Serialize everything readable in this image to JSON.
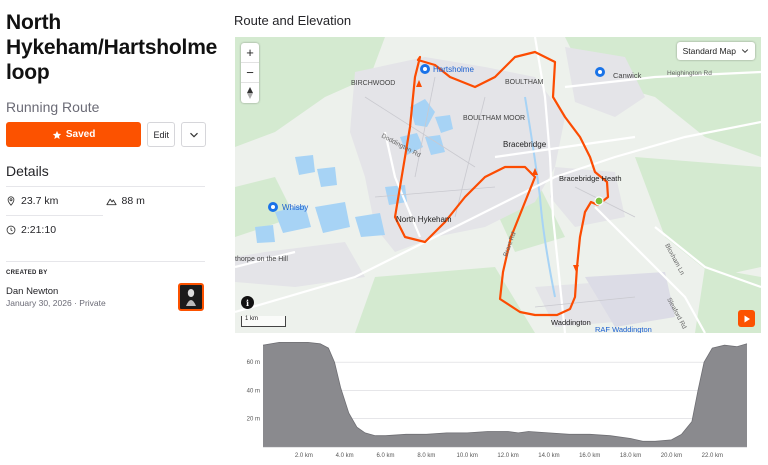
{
  "route": {
    "title": "North Hykeham/Hartsholme loop",
    "type": "Running Route",
    "saved_label": "Saved",
    "edit_label": "Edit"
  },
  "details": {
    "heading": "Details",
    "distance": "23.7 km",
    "elevation_gain": "88 m",
    "est_time": "2:21:10"
  },
  "creator": {
    "heading": "CREATED BY",
    "name": "Dan Newton",
    "date": "January 30, 2026",
    "visibility": "Private"
  },
  "map": {
    "section_title": "Route and Elevation",
    "map_type": "Standard Map",
    "scale_label": "1 km",
    "labels": [
      {
        "text": "BIRCHWOOD"
      },
      {
        "text": "Hartsholme"
      },
      {
        "text": "BOULTHAM"
      },
      {
        "text": "Canwick"
      },
      {
        "text": "Heighington Rd"
      },
      {
        "text": "Doddington Rd"
      },
      {
        "text": "BOULTHAM MOOR"
      },
      {
        "text": "Bracebridge"
      },
      {
        "text": "Bracebridge Heath"
      },
      {
        "text": "Whisby"
      },
      {
        "text": "North Hykeham"
      },
      {
        "text": "thorpe on the Hill"
      },
      {
        "text": "Brant Rd"
      },
      {
        "text": "Bloxham Ln"
      },
      {
        "text": "Sleaford Rd"
      },
      {
        "text": "Waddington"
      },
      {
        "text": "RAF Waddington"
      }
    ],
    "colors": {
      "route": "#fc4c02",
      "water": "#9dcdf3",
      "green": "#cfe8c9",
      "urban": "#e3e3e6",
      "pin": "#1a73e8"
    }
  },
  "chart_data": {
    "type": "area",
    "title": "",
    "xlabel": "",
    "ylabel": "",
    "x_ticks": [
      "2.0 km",
      "4.0 km",
      "6.0 km",
      "8.0 km",
      "10.0 km",
      "12.0 km",
      "14.0 km",
      "16.0 km",
      "18.0 km",
      "20.0 km",
      "22.0 km"
    ],
    "y_ticks": [
      "20 m",
      "40 m",
      "60 m"
    ],
    "xlim": [
      0,
      23.7
    ],
    "ylim": [
      0,
      75
    ],
    "x": [
      0,
      0.8,
      1.5,
      2.2,
      2.8,
      3.2,
      3.5,
      3.8,
      4.2,
      4.6,
      5.0,
      5.5,
      6.0,
      7.0,
      8.0,
      9.0,
      10.0,
      11.0,
      12.0,
      12.5,
      13.0,
      14.0,
      15.0,
      16.0,
      17.0,
      18.0,
      18.6,
      19.2,
      20.0,
      20.5,
      21.0,
      21.3,
      21.6,
      22.0,
      22.6,
      23.2,
      23.7
    ],
    "y": [
      72,
      74,
      74,
      74,
      73,
      70,
      60,
      42,
      24,
      14,
      10,
      8,
      8,
      9,
      9,
      10,
      10,
      11,
      11,
      10,
      11,
      10,
      9,
      9,
      8,
      6,
      4,
      4,
      5,
      9,
      18,
      40,
      60,
      70,
      72,
      71,
      73
    ]
  }
}
